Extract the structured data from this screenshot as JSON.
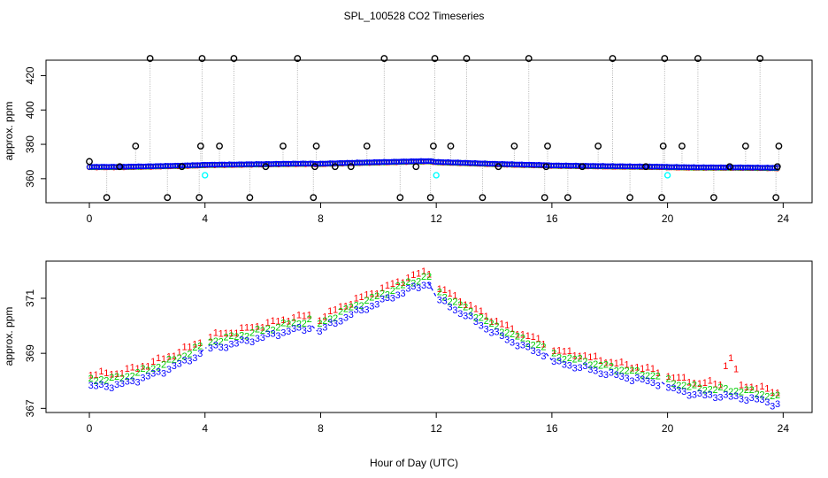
{
  "figure": {
    "title": "SPL_100528  CO2 Timeseries",
    "xlabel": "Hour of Day (UTC)"
  },
  "colors": {
    "ch0": "#000000",
    "ch1": "#ff0000",
    "ch2": "#00cc00",
    "ch3": "#0000ff",
    "sample": "#00ffff",
    "line": "#b0b0b0"
  },
  "chart_data": [
    {
      "type": "scatter",
      "name": "top",
      "title": "SPL_100528  CO2 Timeseries",
      "xlabel": "",
      "ylabel": "approx. ppm",
      "xlim": [
        -1.5,
        25
      ],
      "ylim": [
        346,
        429
      ],
      "xticks": [
        "0",
        "4",
        "8",
        "12",
        "16",
        "20",
        "24"
      ],
      "yticks": [
        "360",
        "380",
        "400",
        "420"
      ],
      "series": [
        {
          "name": "0",
          "marker": "circle",
          "x": [
            0,
            0.6,
            1.05,
            1.6,
            2.1,
            2.7,
            3.2,
            3.8,
            3.85,
            3.9,
            4.5,
            5.0,
            5.55,
            6.1,
            6.7,
            7.2,
            7.75,
            7.8,
            7.85,
            8.5,
            9.05,
            9.6,
            10.2,
            10.75,
            11.3,
            11.8,
            11.9,
            11.95,
            12.5,
            13.05,
            13.6,
            14.15,
            14.7,
            15.2,
            15.75,
            15.8,
            15.85,
            16.55,
            17.05,
            17.6,
            18.1,
            18.7,
            19.25,
            19.8,
            19.85,
            19.9,
            20.5,
            21.05,
            21.6,
            22.15,
            22.7,
            23.2,
            23.75,
            23.8,
            23.85
          ],
          "y": [
            370,
            349,
            367,
            379,
            430,
            349,
            367,
            349,
            379,
            430,
            379,
            430,
            349,
            367,
            379,
            430,
            349,
            367,
            379,
            367,
            367,
            379,
            430,
            349,
            367,
            349,
            379,
            430,
            379,
            430,
            349,
            367,
            379,
            430,
            349,
            367,
            379,
            349,
            367,
            379,
            430,
            349,
            367,
            349,
            379,
            430,
            379,
            430,
            349,
            367,
            379,
            430,
            349,
            367,
            379
          ]
        },
        {
          "name": "sample",
          "marker": "circle",
          "x": [
            4.0,
            12.0,
            20.0
          ],
          "y": [
            362,
            362,
            362
          ]
        }
      ]
    },
    {
      "type": "scatter",
      "name": "bottom",
      "title": "",
      "xlabel": "Hour of Day (UTC)",
      "ylabel": "approx. ppm",
      "xlim": [
        -1.5,
        25
      ],
      "ylim": [
        366.85,
        372.35
      ],
      "xticks": [
        "0",
        "4",
        "8",
        "12",
        "16",
        "20",
        "24"
      ],
      "yticks": [
        "367",
        "369",
        "371"
      ],
      "channels": [
        {
          "name": "1",
          "label": "1",
          "offset": 0.25
        },
        {
          "name": "2",
          "label": "2",
          "offset": 0.05
        },
        {
          "name": "3",
          "label": "3",
          "offset": -0.2
        }
      ],
      "base_curve": {
        "x": [
          0,
          1,
          2,
          3,
          3.85,
          4.0,
          5,
          6,
          7,
          7.7,
          7.85,
          8,
          9,
          10,
          11,
          11.7,
          11.8,
          12,
          13,
          14,
          15,
          15.8,
          15.9,
          16,
          17,
          18,
          19,
          19.8,
          19.9,
          20,
          21,
          22,
          23,
          23.8
        ],
        "y": [
          368.0,
          368.05,
          368.35,
          368.75,
          369.2,
          369.35,
          369.55,
          369.8,
          370.05,
          370.15,
          369.9,
          370.05,
          370.6,
          371.05,
          371.5,
          371.75,
          371.7,
          371.2,
          370.6,
          369.95,
          369.45,
          369.15,
          368.95,
          368.9,
          368.7,
          368.45,
          368.25,
          368.1,
          368.05,
          367.95,
          367.7,
          367.65,
          367.55,
          367.35
        ]
      },
      "spike": {
        "x": [
          22.1,
          22.2,
          22.3
        ],
        "y": [
          368.55,
          368.85,
          368.45
        ]
      }
    }
  ]
}
